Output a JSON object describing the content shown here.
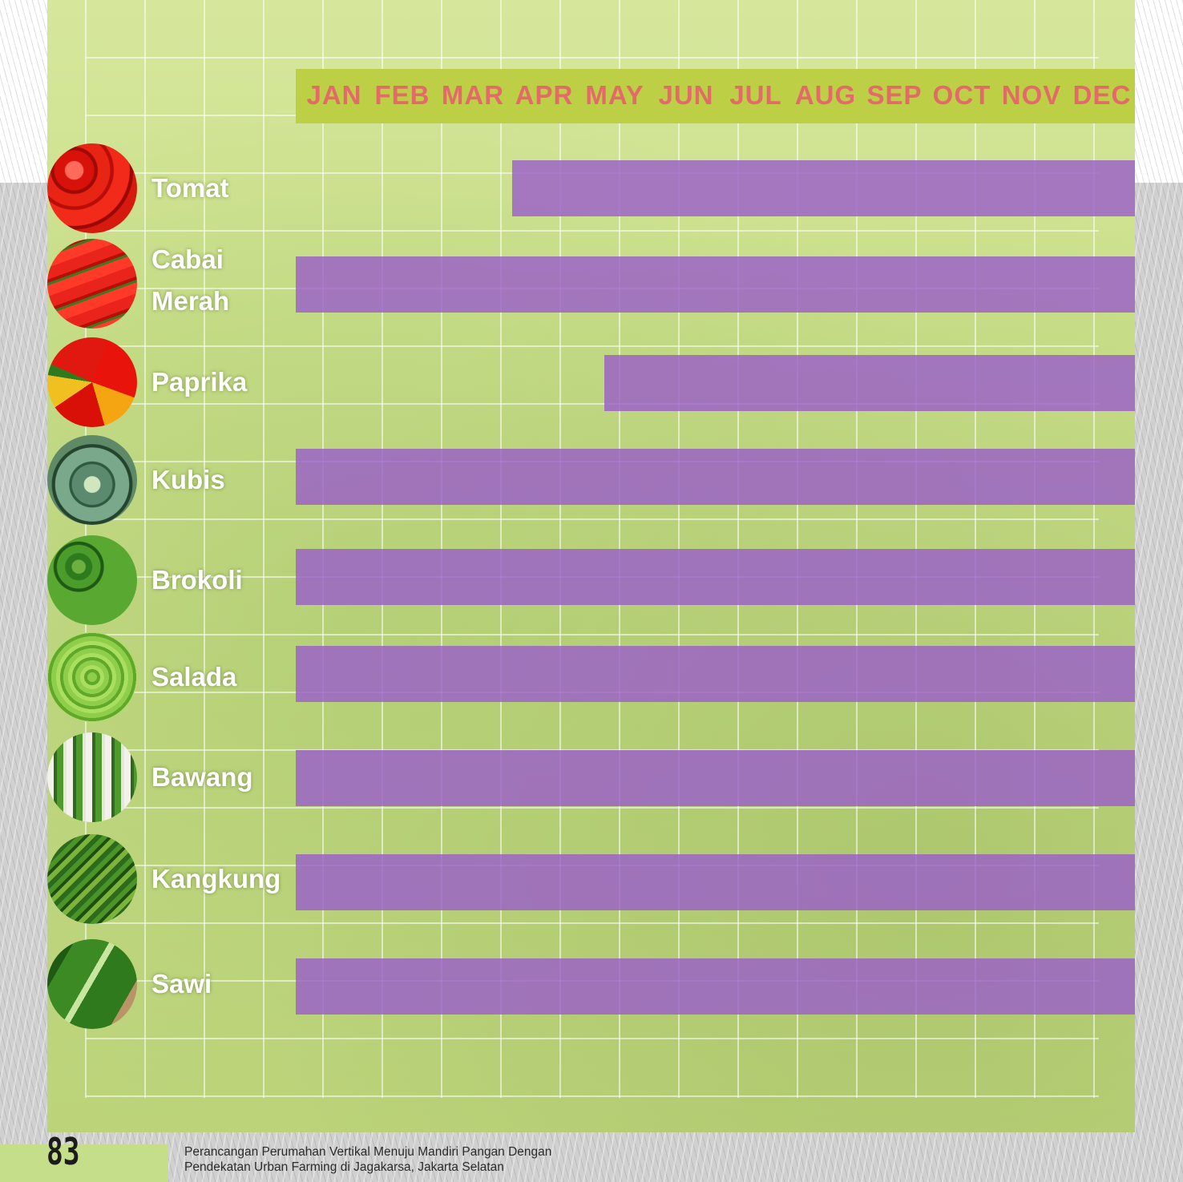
{
  "colors": {
    "bar": "#9b5fc8",
    "month_band": "#bccf45",
    "month_text": "#e46a6a",
    "panel": "#cadf8a"
  },
  "chart_data": {
    "type": "bar",
    "orientation": "horizontal-gantt",
    "title": "",
    "months": [
      "JAN",
      "FEB",
      "MAR",
      "APR",
      "MAY",
      "JUN",
      "JUL",
      "AUG",
      "SEP",
      "OCT",
      "NOV",
      "DEC"
    ],
    "rows": [
      {
        "label": "Tomat",
        "image": "tomato-icon",
        "start_month": "APR",
        "end_month": "DEC"
      },
      {
        "label": "Cabai Merah",
        "label_lines": [
          "Cabai",
          "Merah"
        ],
        "image": "chili-icon",
        "start_month": "JAN",
        "end_month": "DEC"
      },
      {
        "label": "Paprika",
        "image": "bell-pepper-icon",
        "start_month": "MAY",
        "end_month": "DEC"
      },
      {
        "label": "Kubis",
        "image": "cabbage-icon",
        "start_month": "JAN",
        "end_month": "DEC"
      },
      {
        "label": "Brokoli",
        "image": "broccoli-icon",
        "start_month": "JAN",
        "end_month": "DEC"
      },
      {
        "label": "Salada",
        "image": "lettuce-icon",
        "start_month": "JAN",
        "end_month": "DEC"
      },
      {
        "label": "Bawang",
        "image": "scallion-icon",
        "start_month": "JAN",
        "end_month": "DEC"
      },
      {
        "label": "Kangkung",
        "image": "water-spinach-icon",
        "start_month": "JAN",
        "end_month": "DEC"
      },
      {
        "label": "Sawi",
        "image": "mustard-greens-icon",
        "start_month": "JAN",
        "end_month": "DEC"
      }
    ]
  },
  "footer": {
    "page_number": "83",
    "caption_line1": "Perancangan Perumahan Vertikal Menuju Mandiri Pangan Dengan",
    "caption_line2": "Pendekatan Urban Farming di Jagakarsa, Jakarta Selatan"
  }
}
